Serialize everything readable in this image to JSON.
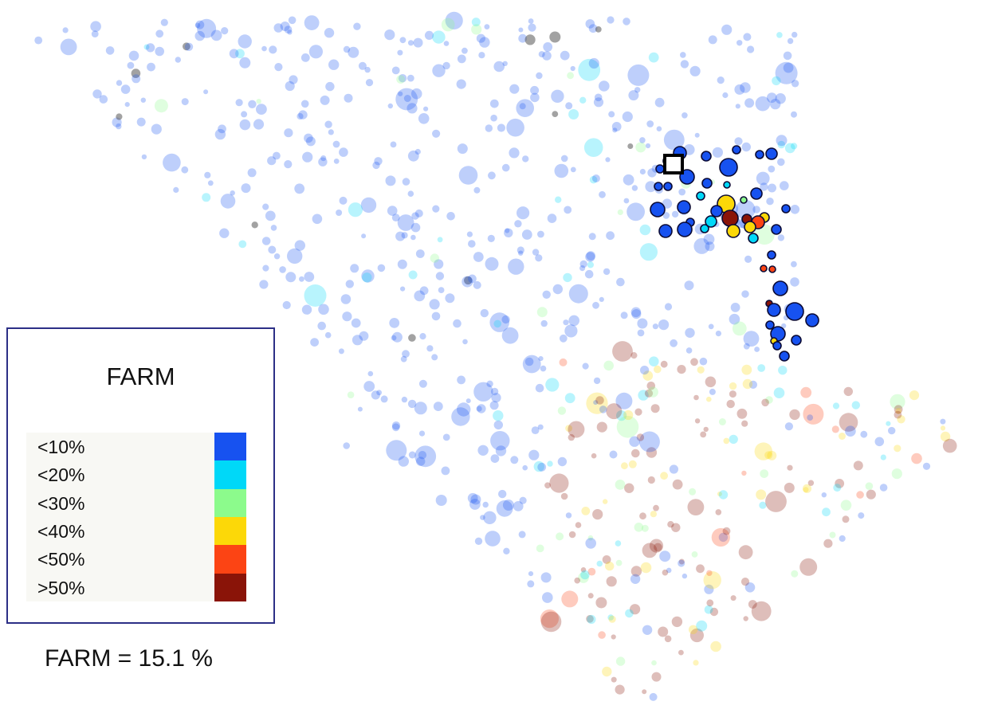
{
  "legend": {
    "title": "FARM",
    "items": [
      {
        "label": "<10%",
        "color": "#1752f0"
      },
      {
        "label": "<20%",
        "color": "#00d8f8"
      },
      {
        "label": "<30%",
        "color": "#8cfb8c"
      },
      {
        "label": "<40%",
        "color": "#fcd808"
      },
      {
        "label": "<50%",
        "color": "#fc4414"
      },
      {
        "label": ">50%",
        "color": "#8a1408"
      }
    ]
  },
  "summary": {
    "label": "FARM",
    "separator": " = ",
    "value": "15.1 %"
  },
  "marker_icon": "selected-square-icon",
  "map_points_note_icon": "map-point-icon"
}
